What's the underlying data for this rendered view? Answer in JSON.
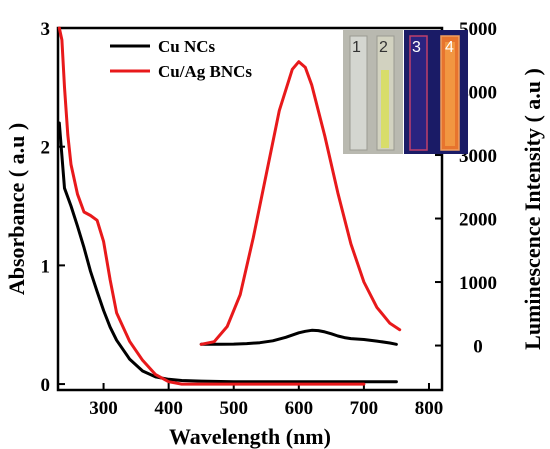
{
  "chart_data": {
    "type": "line",
    "xlabel": "Wavelength (nm)",
    "ylabel_left": "Absorbance ( a.u )",
    "ylabel_right": "Luminescence Intensity ( a.u )",
    "xlim": [
      230,
      820
    ],
    "ylim_left": [
      -0.05,
      3.0
    ],
    "ylim_right": [
      -700,
      5000
    ],
    "x_ticks": [
      "300",
      "400",
      "500",
      "600",
      "700",
      "800"
    ],
    "y_left_ticks": [
      "0",
      "1",
      "2",
      "3"
    ],
    "y_right_ticks": [
      "0",
      "1000",
      "2000",
      "3000",
      "4000",
      "5000"
    ],
    "legend": [
      "Cu NCs",
      "Cu/Ag BNCs"
    ],
    "colors": {
      "cu": "#000000",
      "cuag": "#e8191b"
    },
    "series": [
      {
        "name": "Cu NCs",
        "kind": "absorbance",
        "axis": "left",
        "x": [
          232,
          240,
          250,
          260,
          270,
          280,
          290,
          300,
          310,
          320,
          340,
          360,
          380,
          400,
          420,
          450,
          500,
          550,
          600,
          650,
          700,
          750
        ],
        "y": [
          2.2,
          1.65,
          1.5,
          1.33,
          1.15,
          0.95,
          0.78,
          0.62,
          0.48,
          0.37,
          0.21,
          0.11,
          0.06,
          0.04,
          0.03,
          0.025,
          0.02,
          0.02,
          0.02,
          0.02,
          0.02,
          0.02
        ]
      },
      {
        "name": "Cu/Ag BNCs",
        "kind": "absorbance",
        "axis": "left",
        "x": [
          232,
          236,
          240,
          245,
          250,
          260,
          270,
          280,
          290,
          300,
          310,
          320,
          340,
          360,
          380,
          400,
          420,
          450,
          500,
          600,
          700
        ],
        "y": [
          3.0,
          2.9,
          2.5,
          2.1,
          1.85,
          1.6,
          1.45,
          1.42,
          1.38,
          1.2,
          0.88,
          0.6,
          0.36,
          0.2,
          0.08,
          0.02,
          0.0,
          0.0,
          0.0,
          0.0,
          0.0
        ]
      },
      {
        "name": "Cu NCs",
        "kind": "luminescence",
        "axis": "right",
        "x": [
          450,
          480,
          500,
          520,
          540,
          560,
          580,
          600,
          610,
          620,
          630,
          640,
          650,
          660,
          670,
          680,
          700,
          720,
          740,
          750
        ],
        "y": [
          20,
          20,
          22,
          30,
          45,
          75,
          130,
          200,
          225,
          240,
          235,
          215,
          185,
          150,
          125,
          110,
          95,
          70,
          40,
          20
        ]
      },
      {
        "name": "Cu/Ag BNCs",
        "kind": "luminescence",
        "axis": "right",
        "x": [
          450,
          470,
          490,
          510,
          530,
          550,
          570,
          590,
          600,
          610,
          620,
          640,
          660,
          680,
          700,
          720,
          740,
          755
        ],
        "y": [
          20,
          60,
          300,
          800,
          1700,
          2700,
          3700,
          4350,
          4470,
          4380,
          4100,
          3300,
          2400,
          1600,
          1000,
          600,
          350,
          250
        ]
      }
    ],
    "inset_labels": [
      "1",
      "2",
      "3",
      "4"
    ]
  }
}
